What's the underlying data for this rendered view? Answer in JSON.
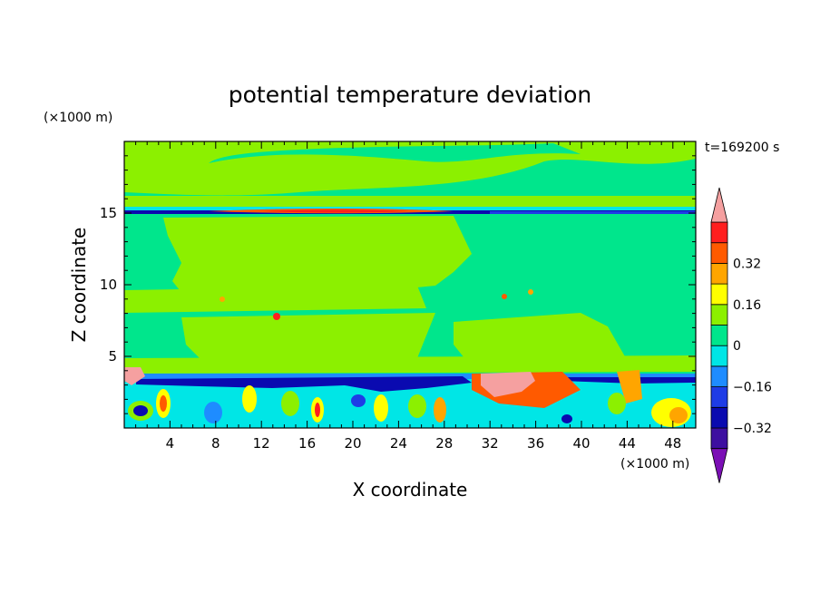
{
  "chart_data": {
    "type": "heatmap",
    "subtype": "filled-contour",
    "title": "potential temperature deviation",
    "xlabel": "X coordinate",
    "ylabel": "Z coordinate",
    "x_unit_label": "(×1000 m)",
    "y_unit_label": "(×1000 m)",
    "time_label": "t=169200 s",
    "xlim": [
      0,
      50
    ],
    "ylim": [
      0,
      20
    ],
    "x_ticks": [
      4,
      8,
      12,
      16,
      20,
      24,
      28,
      32,
      36,
      40,
      44,
      48
    ],
    "y_ticks": [
      5,
      10,
      15
    ],
    "x_tick_labels": [
      "4",
      "8",
      "12",
      "16",
      "20",
      "24",
      "28",
      "32",
      "36",
      "40",
      "44",
      "48"
    ],
    "y_tick_labels": [
      "5",
      "10",
      "15"
    ],
    "colorbar": {
      "levels": [
        -0.48,
        -0.4,
        -0.32,
        -0.24,
        -0.16,
        -0.08,
        0,
        0.08,
        0.16,
        0.24,
        0.32,
        0.4,
        0.48
      ],
      "colors": [
        "#7b0fb5",
        "#3d0fa0",
        "#0a0ab0",
        "#1e3ce6",
        "#1e8cff",
        "#00e6e6",
        "#00e68c",
        "#8cf000",
        "#ffff00",
        "#ffa500",
        "#ff5a00",
        "#ff1e1e",
        "#f5a0a0"
      ],
      "labels": [
        "0.32",
        "0.16",
        "0",
        "−0.16",
        "−0.32"
      ],
      "label_values": [
        0.32,
        0.16,
        0,
        -0.16,
        -0.32
      ],
      "extend": "both"
    },
    "features": [
      {
        "x": [
          0,
          50
        ],
        "y": [
          15.05,
          15.15
        ],
        "value": -0.3
      },
      {
        "x": [
          6,
          28
        ],
        "y": [
          15.15,
          15.3
        ],
        "value": 0.36
      },
      {
        "x": [
          13,
          24
        ],
        "y": [
          15.15,
          15.25
        ],
        "value": 0.42
      },
      {
        "x": [
          0,
          50
        ],
        "y": [
          3.3,
          3.8
        ],
        "value": -0.3
      },
      {
        "x": [
          31,
          38
        ],
        "y": [
          3.0,
          4.0
        ],
        "value": 0.45
      },
      {
        "x": [
          0,
          3
        ],
        "y": [
          3.2,
          4.0
        ],
        "value": 0.42
      },
      {
        "x": [
          0,
          50
        ],
        "y": [
          0,
          3.2
        ],
        "value": -0.08
      }
    ]
  }
}
